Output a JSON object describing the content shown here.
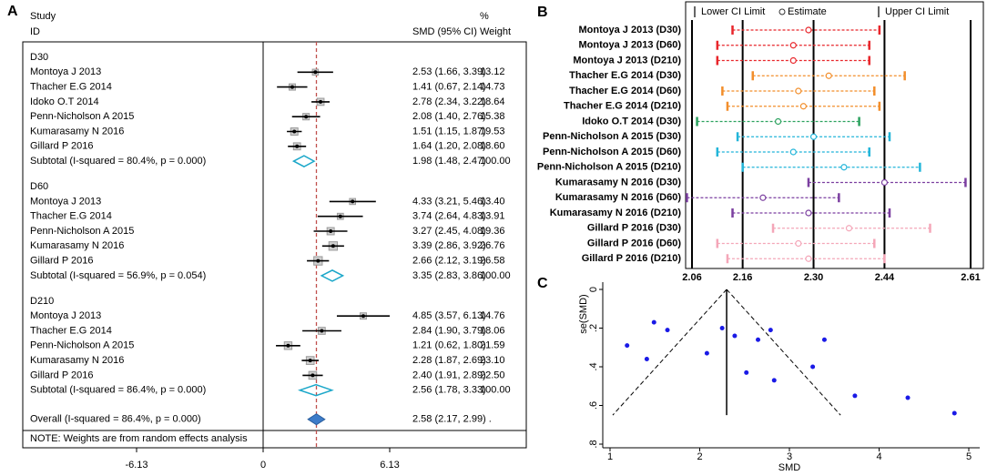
{
  "chart_data": [
    {
      "type": "forest",
      "panel": "A",
      "headers": {
        "study": "Study",
        "id": "ID",
        "estimate": "SMD (95% CI)",
        "pct": "%",
        "weight": "Weight"
      },
      "groups": [
        {
          "name": "D30",
          "rows": [
            {
              "study": "Montoya J 2013",
              "smd": 2.53,
              "lower": 1.66,
              "upper": 3.39,
              "weight": 13.12,
              "ci_label": "2.53 (1.66, 3.39)",
              "weight_label": "13.12"
            },
            {
              "study": "Thacher E.G 2014",
              "smd": 1.41,
              "lower": 0.67,
              "upper": 2.14,
              "weight": 14.73,
              "ci_label": "1.41 (0.67, 2.14)",
              "weight_label": "14.73"
            },
            {
              "study": "Idoko O.T 2014",
              "smd": 2.78,
              "lower": 2.34,
              "upper": 3.22,
              "weight": 18.64,
              "ci_label": "2.78 (2.34, 3.22)",
              "weight_label": "18.64"
            },
            {
              "study": "Penn-Nicholson A 2015",
              "smd": 2.08,
              "lower": 1.4,
              "upper": 2.76,
              "weight": 15.38,
              "ci_label": "2.08 (1.40, 2.76)",
              "weight_label": "15.38"
            },
            {
              "study": "Kumarasamy N 2016",
              "smd": 1.51,
              "lower": 1.15,
              "upper": 1.87,
              "weight": 19.53,
              "ci_label": "1.51 (1.15, 1.87)",
              "weight_label": "19.53"
            },
            {
              "study": "Gillard P 2016",
              "smd": 1.64,
              "lower": 1.2,
              "upper": 2.08,
              "weight": 18.6,
              "ci_label": "1.64 (1.20, 2.08)",
              "weight_label": "18.60"
            }
          ],
          "subtotal": {
            "label": "Subtotal  (I-squared = 80.4%, p = 0.000)",
            "smd": 1.98,
            "lower": 1.48,
            "upper": 2.47,
            "weight": 100,
            "ci_label": "1.98 (1.48, 2.47)",
            "weight_label": "100.00"
          }
        },
        {
          "name": "D60",
          "rows": [
            {
              "study": "Montoya J 2013",
              "smd": 4.33,
              "lower": 3.21,
              "upper": 5.46,
              "weight": 13.4,
              "ci_label": "4.33 (3.21, 5.46)",
              "weight_label": "13.40"
            },
            {
              "study": "Thacher E.G 2014",
              "smd": 3.74,
              "lower": 2.64,
              "upper": 4.83,
              "weight": 13.91,
              "ci_label": "3.74 (2.64, 4.83)",
              "weight_label": "13.91"
            },
            {
              "study": "Penn-Nicholson A 2015",
              "smd": 3.27,
              "lower": 2.45,
              "upper": 4.08,
              "weight": 19.36,
              "ci_label": "3.27 (2.45, 4.08)",
              "weight_label": "19.36"
            },
            {
              "study": "Kumarasamy N 2016",
              "smd": 3.39,
              "lower": 2.86,
              "upper": 3.92,
              "weight": 26.76,
              "ci_label": "3.39 (2.86, 3.92)",
              "weight_label": "26.76"
            },
            {
              "study": "Gillard P 2016",
              "smd": 2.66,
              "lower": 2.12,
              "upper": 3.19,
              "weight": 26.58,
              "ci_label": "2.66 (2.12, 3.19)",
              "weight_label": "26.58"
            }
          ],
          "subtotal": {
            "label": "Subtotal  (I-squared = 56.9%, p = 0.054)",
            "smd": 3.35,
            "lower": 2.83,
            "upper": 3.86,
            "weight": 100,
            "ci_label": "3.35 (2.83, 3.86)",
            "weight_label": "100.00"
          }
        },
        {
          "name": "D210",
          "rows": [
            {
              "study": "Montoya J 2013",
              "smd": 4.85,
              "lower": 3.57,
              "upper": 6.13,
              "weight": 14.76,
              "ci_label": "4.85 (3.57, 6.13)",
              "weight_label": "14.76"
            },
            {
              "study": "Thacher E.G 2014",
              "smd": 2.84,
              "lower": 1.9,
              "upper": 3.79,
              "weight": 18.06,
              "ci_label": "2.84 (1.90, 3.79)",
              "weight_label": "18.06"
            },
            {
              "study": "Penn-Nicholson A 2015",
              "smd": 1.21,
              "lower": 0.62,
              "upper": 1.8,
              "weight": 21.59,
              "ci_label": "1.21 (0.62, 1.80)",
              "weight_label": "21.59"
            },
            {
              "study": "Kumarasamy N 2016",
              "smd": 2.28,
              "lower": 1.87,
              "upper": 2.69,
              "weight": 23.1,
              "ci_label": "2.28 (1.87, 2.69)",
              "weight_label": "23.10"
            },
            {
              "study": "Gillard P 2016",
              "smd": 2.4,
              "lower": 1.91,
              "upper": 2.89,
              "weight": 22.5,
              "ci_label": "2.40 (1.91, 2.89)",
              "weight_label": "22.50"
            }
          ],
          "subtotal": {
            "label": "Subtotal  (I-squared = 86.4%, p = 0.000)",
            "smd": 2.56,
            "lower": 1.78,
            "upper": 3.33,
            "weight": 100,
            "ci_label": "2.56 (1.78, 3.33)",
            "weight_label": "100.00"
          }
        }
      ],
      "overall": {
        "label": "Overall  (I-squared = 86.4%, p = 0.000)",
        "smd": 2.58,
        "lower": 2.17,
        "upper": 2.99,
        "ci_label": "2.58 (2.17, 2.99) ."
      },
      "note": "NOTE: Weights are from random effects analysis",
      "xlim": [
        -6.13,
        6.13
      ],
      "xticks": [
        -6.13,
        0,
        6.13
      ]
    },
    {
      "type": "interval",
      "panel": "B",
      "legend": [
        "Lower CI Limit",
        "Estimate",
        "Upper CI Limit"
      ],
      "categories": [
        "Montoya J 2013  (D30)",
        "Montoya J 2013  (D60)",
        "Montoya J 2013  (D210)",
        "Thacher E.G 2014  (D30)",
        "Thacher E.G 2014  (D60)",
        "Thacher E.G 2014  (D210)",
        "Idoko O.T 2014  (D30)",
        "Penn-Nicholson A 2015  (D30)",
        "Penn-Nicholson A 2015  (D60)",
        "Penn-Nicholson A 2015  (D210)",
        "Kumarasamy N 2016  (D30)",
        "Kumarasamy N 2016  (D60)",
        "Kumarasamy N 2016  (D210)",
        "Gillard P 2016  (D30)",
        "Gillard P 2016  (D60)",
        "Gillard P 2016  (D210)"
      ],
      "lower": [
        2.14,
        2.11,
        2.11,
        2.18,
        2.12,
        2.13,
        2.07,
        2.15,
        2.11,
        2.16,
        2.29,
        2.05,
        2.14,
        2.22,
        2.11,
        2.13
      ],
      "estimate": [
        2.29,
        2.26,
        2.26,
        2.33,
        2.27,
        2.28,
        2.23,
        2.3,
        2.26,
        2.36,
        2.44,
        2.2,
        2.29,
        2.37,
        2.27,
        2.29
      ],
      "upper": [
        2.43,
        2.41,
        2.41,
        2.48,
        2.42,
        2.43,
        2.39,
        2.45,
        2.41,
        2.51,
        2.6,
        2.35,
        2.45,
        2.53,
        2.42,
        2.44
      ],
      "colors": [
        "#e8262b",
        "#e8262b",
        "#e8262b",
        "#f28e2b",
        "#f28e2b",
        "#f28e2b",
        "#2ca25f",
        "#22b5d9",
        "#22b5d9",
        "#22b5d9",
        "#7b3fa0",
        "#7b3fa0",
        "#7b3fa0",
        "#f4a6b8",
        "#f4a6b8",
        "#f4a6b8"
      ],
      "xlim": [
        2.06,
        2.61
      ],
      "xticks": [
        2.06,
        2.16,
        {
          "value": 2.3,
          "label": "2.30"
        },
        2.44,
        2.61
      ]
    },
    {
      "type": "scatter",
      "panel": "C",
      "x_label": "SMD",
      "y_label": "se(SMD)",
      "color": "#1a1ae6",
      "x": [
        1.19,
        1.49,
        1.64,
        1.41,
        2.25,
        2.08,
        2.39,
        2.65,
        2.79,
        2.52,
        2.83,
        3.39,
        3.26,
        3.73,
        4.32,
        4.84
      ],
      "y": [
        0.29,
        0.17,
        0.21,
        0.36,
        0.2,
        0.33,
        0.24,
        0.26,
        0.21,
        0.43,
        0.47,
        0.26,
        0.4,
        0.55,
        0.56,
        0.64
      ],
      "funnel": {
        "center": 2.3,
        "se_max": 0.65,
        "left": 1.03,
        "right": 3.57
      },
      "xlim": [
        1,
        5
      ],
      "xticks": [
        1,
        2,
        3,
        4,
        5
      ],
      "ylim": [
        0,
        0.8
      ],
      "y_reversed": true,
      "yticks": [
        0,
        {
          "value": 0.2,
          "label": ".2"
        },
        {
          "value": 0.4,
          "label": ".4"
        },
        {
          "value": 0.6,
          "label": ".6"
        },
        {
          "value": 0.8,
          "label": ".8"
        }
      ]
    }
  ]
}
